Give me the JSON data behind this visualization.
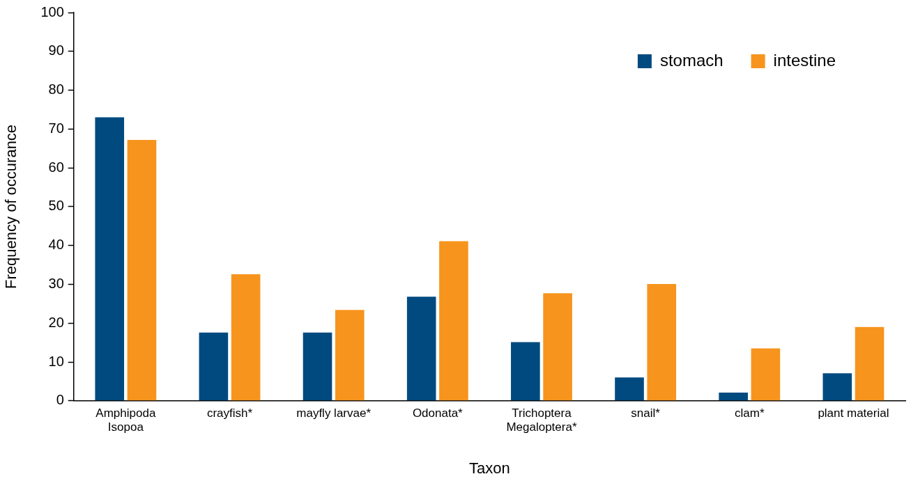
{
  "chart_data": {
    "type": "bar",
    "xlabel": "Taxon",
    "ylabel": "Frequency of occurance",
    "categories": [
      "Amphipoda\nIsopoa",
      "crayfish*",
      "mayfly larvae*",
      "Odonata*",
      "Trichoptera\nMegaloptera*",
      "snail*",
      "clam*",
      "plant material"
    ],
    "series": [
      {
        "name": "stomach",
        "color": "#004a7f",
        "values": [
          73,
          17.6,
          17.6,
          26.8,
          15.1,
          6,
          2.1,
          7.1
        ]
      },
      {
        "name": "intestine",
        "color": "#f7941d",
        "values": [
          67.2,
          32.6,
          23.4,
          41.1,
          27.7,
          30.1,
          13.5,
          19
        ]
      }
    ],
    "ylim": [
      0,
      100
    ],
    "yticks": [
      0,
      10,
      20,
      30,
      40,
      50,
      60,
      70,
      80,
      90,
      100
    ],
    "grid": false,
    "legend": "top right"
  }
}
